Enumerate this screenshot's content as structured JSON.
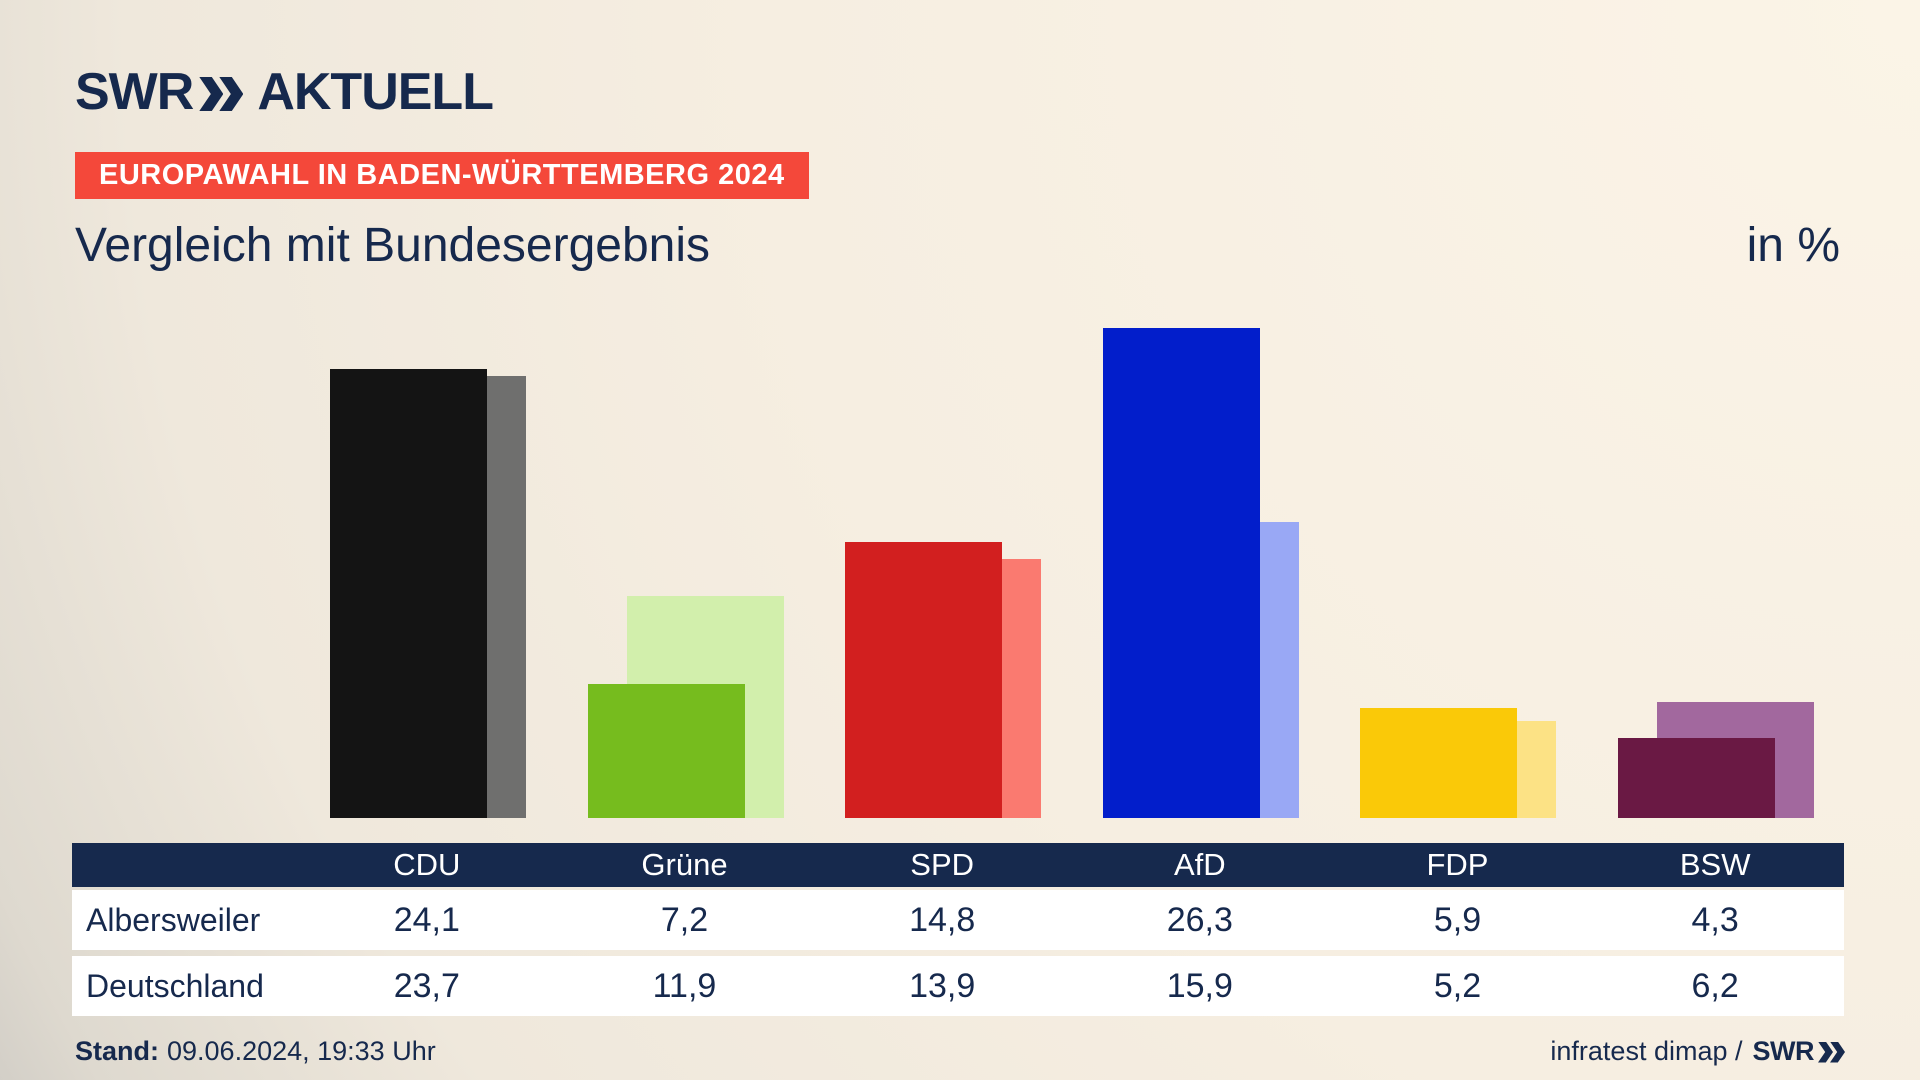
{
  "brand": {
    "logo_swr": "SWR",
    "logo_word": "AKTUELL"
  },
  "badge": {
    "text": "EUROPAWAHL IN BADEN-WÜRTTEMBERG 2024",
    "bg": "#F4483A",
    "fg": "#FFFFFF"
  },
  "title": "Vergleich mit Bundesergebnis",
  "unit_label": "in %",
  "chart_data": {
    "type": "bar",
    "title": "Vergleich mit Bundesergebnis",
    "ylabel": "in %",
    "categories": [
      "CDU",
      "Grüne",
      "SPD",
      "AfD",
      "FDP",
      "BSW"
    ],
    "series": [
      {
        "name": "Albersweiler",
        "values": [
          24.1,
          7.2,
          14.8,
          26.3,
          5.9,
          4.3
        ],
        "colors": [
          "#141414",
          "#76BC1E",
          "#D21F1F",
          "#021ECB",
          "#FAC908",
          "#6A1944"
        ]
      },
      {
        "name": "Deutschland",
        "values": [
          23.7,
          11.9,
          13.9,
          15.9,
          5.2,
          6.2
        ],
        "colors": [
          "#6F6F6E",
          "#D2EFAC",
          "#FA7A70",
          "#99A8F5",
          "#FCE285",
          "#A2689E"
        ]
      }
    ],
    "ylim": [
      0,
      27
    ],
    "grid": false,
    "legend_position": "table-below",
    "value_format": "comma-decimal"
  },
  "table": {
    "columns": [
      "",
      "CDU",
      "Grüne",
      "SPD",
      "AfD",
      "FDP",
      "BSW"
    ],
    "rows": [
      {
        "label": "Albersweiler",
        "values": [
          "24,1",
          "7,2",
          "14,8",
          "26,3",
          "5,9",
          "4,3"
        ]
      },
      {
        "label": "Deutschland",
        "values": [
          "23,7",
          "11,9",
          "13,9",
          "15,9",
          "5,2",
          "6,2"
        ]
      }
    ]
  },
  "footer": {
    "stand_label": "Stand:",
    "stand_value": "09.06.2024, 19:33 Uhr",
    "source_text": "infratest dimap /",
    "source_brand": "SWR"
  },
  "colors": {
    "navy": "#16294D",
    "badge_red": "#F4483A",
    "row_bg": "#FFFFFF",
    "background_cream": "#FBF4E7",
    "background_gray": "#C7C4BF"
  }
}
